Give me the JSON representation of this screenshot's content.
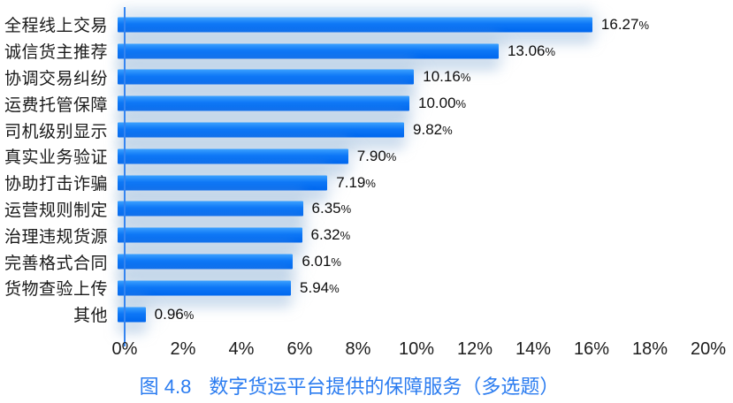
{
  "chart_data": {
    "type": "bar",
    "orientation": "horizontal",
    "title": "图 4.8　数字货运平台提供的保障服务（多选题）",
    "title_prefix": "图 4.8",
    "title_text": "数字货运平台提供的保障服务（多选题）",
    "categories": [
      "全程线上交易",
      "诚信货主推荐",
      "协调交易纠纷",
      "运费托管保障",
      "司机级别显示",
      "真实业务验证",
      "协助打击诈骗",
      "运营规则制定",
      "治理违规货源",
      "完善格式合同",
      "货物查验上传",
      "其他"
    ],
    "values": [
      16.27,
      13.06,
      10.16,
      10.0,
      9.82,
      7.9,
      7.19,
      6.35,
      6.32,
      6.01,
      5.94,
      0.96
    ],
    "value_labels": [
      "16.27%",
      "13.06%",
      "10.16%",
      "10.00%",
      "9.82%",
      "7.90%",
      "7.19%",
      "6.35%",
      "6.32%",
      "6.01%",
      "5.94%",
      "0.96%"
    ],
    "x_ticks": [
      "0%",
      "2%",
      "4%",
      "6%",
      "8%",
      "10%",
      "12%",
      "14%",
      "16%",
      "18%",
      "20%"
    ],
    "xlim": [
      0,
      20
    ],
    "grid": false,
    "legend": "none",
    "colors": {
      "bar_top": "#3ba1ff",
      "bar_bottom": "#0066ee",
      "axis": "#3585f0",
      "title": "#2b7cf0",
      "category_label": "#1a1a1a",
      "value_label": "#0d0d0d",
      "tick_label": "#1c1c1c",
      "shadow": "rgba(163,192,222,0.5)"
    }
  }
}
